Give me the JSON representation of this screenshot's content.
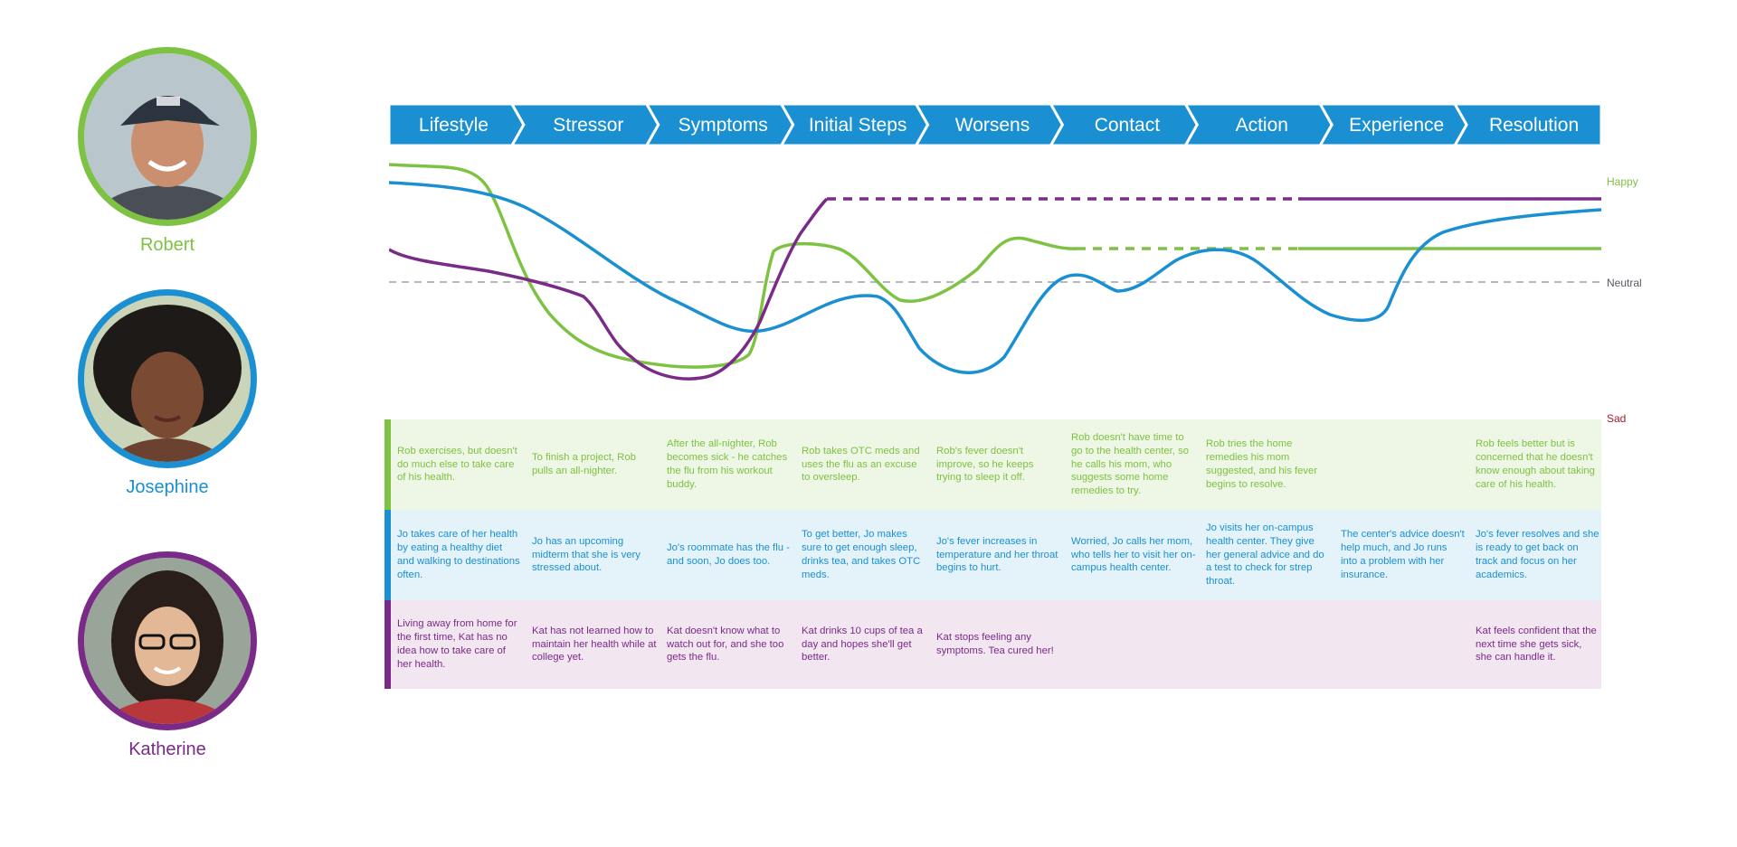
{
  "colors": {
    "robert": "#7dc242",
    "josephine": "#1a90d2",
    "katherine": "#7a2a87",
    "stage_fill": "#1a90d2",
    "row_robert_bg": "#eef6e5",
    "row_josephine_bg": "#e4f2fa",
    "row_katherine_bg": "#f2e6f1",
    "neutral_line": "#9aa0a6",
    "sad_label": "#a31d2b"
  },
  "personas": [
    {
      "name": "Robert",
      "icon": "robert-avatar-photo"
    },
    {
      "name": "Josephine",
      "icon": "josephine-avatar-photo"
    },
    {
      "name": "Katherine",
      "icon": "katherine-avatar-photo"
    }
  ],
  "stages": [
    "Lifestyle",
    "Stressor",
    "Symptoms",
    "Initial Steps",
    "Worsens",
    "Contact",
    "Action",
    "Experience",
    "Resolution"
  ],
  "mood_scale": {
    "happy": "Happy",
    "neutral": "Neutral",
    "sad": "Sad"
  },
  "rows": {
    "robert": [
      "Rob exercises, but doesn't do much else to take care of his health.",
      "To finish a project, Rob pulls an all-nighter.",
      "After the all-nighter, Rob becomes sick - he catches the flu from his workout buddy.",
      "Rob takes OTC meds and uses the flu as an excuse to oversleep.",
      "Rob's fever doesn't improve, so he keeps trying to sleep it off.",
      "Rob doesn't have time to go to the health center, so he calls his mom, who suggests some home remedies to try.",
      "Rob tries the home remedies his mom suggested, and his fever begins to resolve.",
      "",
      "Rob feels better but is concerned that he doesn't know enough about taking care of his health."
    ],
    "josephine": [
      "Jo takes care of her health by eating a healthy diet and walking to destinations often.",
      "Jo has an upcoming midterm that she is very stressed about.",
      "Jo's roommate has the flu - and soon, Jo does too.",
      "To get better, Jo makes sure to get enough sleep, drinks tea, and takes OTC meds.",
      "Jo's fever increases in temperature and her throat begins to hurt.",
      "Worried, Jo calls her mom, who tells her to visit her on-campus health center.",
      "Jo visits her on-campus health center. They give her general advice and do a test to check for strep throat.",
      "The center's advice doesn't help much, and Jo runs into a problem with her insurance.",
      "Jo's fever resolves and she is ready to get back on track and focus on her academics."
    ],
    "katherine": [
      "Living away from home for the first time, Kat has no idea how to take care of her health.",
      "Kat has not learned how to maintain her health while at college yet.",
      "Kat doesn't know what to watch out for, and she too gets the flu.",
      "Kat drinks 10 cups of tea a day and hopes she'll get better.",
      "Kat stops feeling any symptoms. Tea cured her!",
      "",
      "",
      "",
      "Kat feels confident that the next time she gets sick, she can handle it."
    ]
  }
}
